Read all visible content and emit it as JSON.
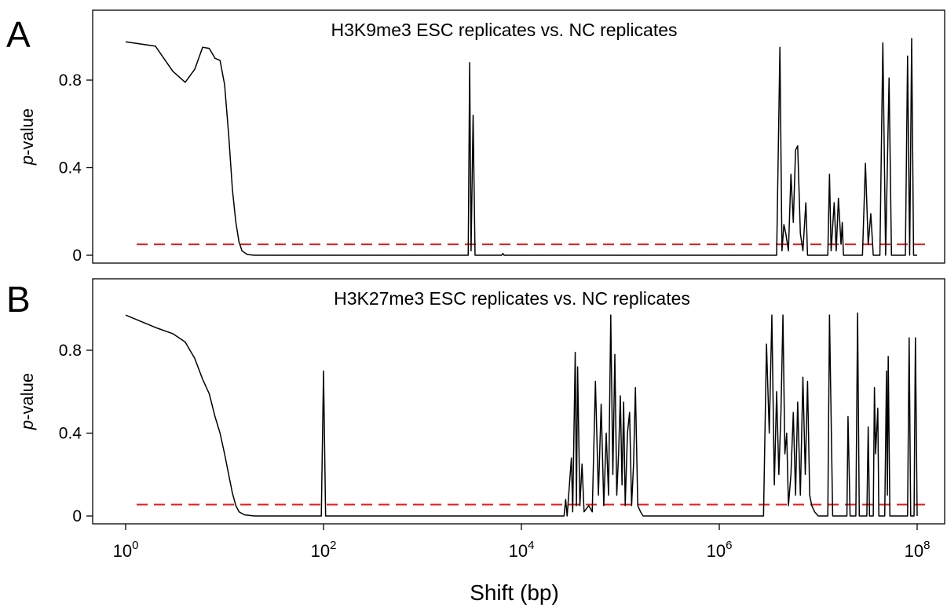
{
  "figure": {
    "xlabel": "Shift (bp)",
    "colors": {
      "curve": "#000000",
      "threshold": "#e41a1c"
    }
  },
  "chart_data": [
    {
      "type": "line",
      "panel_letter": "A",
      "title": "H3K9me3 ESC replicates vs. NC replicates",
      "xlabel": "",
      "ylabel_italic": "p",
      "ylabel_rest": "-value",
      "x_scale": "log10",
      "xlim": [
        0.8,
        160000000
      ],
      "ylim": [
        -0.03,
        1.05
      ],
      "yticks": [
        0,
        0.4,
        0.8
      ],
      "ytick_labels": [
        "0",
        "0.4",
        "0.8"
      ],
      "grid": false,
      "threshold": 0.05,
      "series": [
        {
          "values": [
            [
              1,
              0.975
            ],
            [
              2,
              0.955
            ],
            [
              3,
              0.84
            ],
            [
              4,
              0.79
            ],
            [
              5,
              0.85
            ],
            [
              6,
              0.95
            ],
            [
              7,
              0.945
            ],
            [
              8,
              0.9
            ],
            [
              9,
              0.89
            ],
            [
              10,
              0.78
            ],
            [
              11,
              0.55
            ],
            [
              12,
              0.3
            ],
            [
              13,
              0.15
            ],
            [
              14,
              0.06
            ],
            [
              15,
              0.02
            ],
            [
              17,
              0.003
            ],
            [
              20,
              0
            ],
            [
              2900,
              0
            ],
            [
              3000,
              0.88
            ],
            [
              3100,
              0.02
            ],
            [
              3250,
              0.64
            ],
            [
              3400,
              0
            ],
            [
              6300,
              0
            ],
            [
              6500,
              0.008
            ],
            [
              6700,
              0
            ],
            [
              3800000,
              0
            ],
            [
              4100000,
              0.95
            ],
            [
              4300000,
              0.02
            ],
            [
              4500000,
              0.14
            ],
            [
              4700000,
              0.1
            ],
            [
              5000000,
              0.02
            ],
            [
              5300000,
              0.37
            ],
            [
              5600000,
              0.15
            ],
            [
              5900000,
              0.48
            ],
            [
              6200000,
              0.5
            ],
            [
              6600000,
              0.1
            ],
            [
              7000000,
              0.02
            ],
            [
              7500000,
              0.24
            ],
            [
              7800000,
              0
            ],
            [
              12500000,
              0
            ],
            [
              13000000,
              0.37
            ],
            [
              13500000,
              0.02
            ],
            [
              14500000,
              0.24
            ],
            [
              15200000,
              0.02
            ],
            [
              16000000,
              0.26
            ],
            [
              17000000,
              0.05
            ],
            [
              17500000,
              0.15
            ],
            [
              18000000,
              0
            ],
            [
              28000000,
              0
            ],
            [
              30000000,
              0.42
            ],
            [
              32000000,
              0.05
            ],
            [
              34000000,
              0.19
            ],
            [
              36000000,
              0
            ],
            [
              42000000,
              0
            ],
            [
              45000000,
              0.97
            ],
            [
              48000000,
              0
            ],
            [
              52000000,
              0.81
            ],
            [
              55000000,
              0
            ],
            [
              76000000,
              0
            ],
            [
              80000000,
              0.91
            ],
            [
              84000000,
              0
            ],
            [
              88000000,
              0.99
            ],
            [
              92000000,
              0
            ],
            [
              100000000,
              0
            ]
          ]
        }
      ]
    },
    {
      "type": "line",
      "panel_letter": "B",
      "title": "H3K27me3 ESC replicates vs. NC replicates",
      "xlabel": "",
      "ylabel_italic": "p",
      "ylabel_rest": "-value",
      "x_scale": "log10",
      "xlim": [
        0.8,
        160000000
      ],
      "xticks": [
        1,
        100,
        10000,
        1000000,
        100000000
      ],
      "xtick_base": "10",
      "xtick_exponents": [
        "0",
        "2",
        "4",
        "6",
        "8"
      ],
      "ylim": [
        -0.03,
        1.05
      ],
      "yticks": [
        0,
        0.4,
        0.8
      ],
      "ytick_labels": [
        "0",
        "0.4",
        "0.8"
      ],
      "grid": false,
      "threshold": 0.055,
      "series": [
        {
          "values": [
            [
              1,
              0.97
            ],
            [
              2,
              0.91
            ],
            [
              3,
              0.88
            ],
            [
              4,
              0.84
            ],
            [
              5,
              0.76
            ],
            [
              6,
              0.66
            ],
            [
              7,
              0.59
            ],
            [
              8,
              0.48
            ],
            [
              9,
              0.4
            ],
            [
              10,
              0.3
            ],
            [
              11,
              0.2
            ],
            [
              12,
              0.11
            ],
            [
              13,
              0.05
            ],
            [
              14,
              0.02
            ],
            [
              16,
              0.005
            ],
            [
              20,
              0
            ],
            [
              95,
              0
            ],
            [
              100,
              0.7
            ],
            [
              105,
              0
            ],
            [
              27000,
              0
            ],
            [
              28000,
              0.08
            ],
            [
              29000,
              0
            ],
            [
              32000,
              0.28
            ],
            [
              33000,
              0.02
            ],
            [
              35000,
              0.79
            ],
            [
              36000,
              0.05
            ],
            [
              37000,
              0.72
            ],
            [
              39000,
              0.05
            ],
            [
              41000,
              0.25
            ],
            [
              43000,
              0.02
            ],
            [
              48000,
              0.05
            ],
            [
              52000,
              0.02
            ],
            [
              56000,
              0.65
            ],
            [
              60000,
              0.1
            ],
            [
              64000,
              0.54
            ],
            [
              68000,
              0.05
            ],
            [
              72000,
              0.4
            ],
            [
              76000,
              0.1
            ],
            [
              80000,
              0.97
            ],
            [
              84000,
              0.2
            ],
            [
              88000,
              0.78
            ],
            [
              92000,
              0.1
            ],
            [
              96000,
              0.3
            ],
            [
              100000,
              0.58
            ],
            [
              104000,
              0.15
            ],
            [
              108000,
              0.55
            ],
            [
              112000,
              0.05
            ],
            [
              118000,
              0.4
            ],
            [
              124000,
              0.5
            ],
            [
              130000,
              0.05
            ],
            [
              136000,
              0.25
            ],
            [
              142000,
              0.62
            ],
            [
              150000,
              0.05
            ],
            [
              160000,
              0.02
            ],
            [
              170000,
              0
            ],
            [
              2800000,
              0
            ],
            [
              3000000,
              0.83
            ],
            [
              3200000,
              0.4
            ],
            [
              3400000,
              0.97
            ],
            [
              3600000,
              0.15
            ],
            [
              3800000,
              0.6
            ],
            [
              4000000,
              0.2
            ],
            [
              4200000,
              0.5
            ],
            [
              4400000,
              0.97
            ],
            [
              4600000,
              0.3
            ],
            [
              4800000,
              0.4
            ],
            [
              5000000,
              0.05
            ],
            [
              5300000,
              0.2
            ],
            [
              5600000,
              0.5
            ],
            [
              5900000,
              0.1
            ],
            [
              6200000,
              0.55
            ],
            [
              6600000,
              0.1
            ],
            [
              7000000,
              0.67
            ],
            [
              7400000,
              0.2
            ],
            [
              7800000,
              0.65
            ],
            [
              8200000,
              0.1
            ],
            [
              8600000,
              0.05
            ],
            [
              9200000,
              0.02
            ],
            [
              10000000,
              0
            ],
            [
              12500000,
              0
            ],
            [
              13000000,
              0.97
            ],
            [
              14000000,
              0
            ],
            [
              19500000,
              0
            ],
            [
              20000000,
              0.48
            ],
            [
              21000000,
              0
            ],
            [
              24000000,
              0
            ],
            [
              25000000,
              0.98
            ],
            [
              26000000,
              0
            ],
            [
              31000000,
              0
            ],
            [
              32000000,
              0.43
            ],
            [
              33000000,
              0
            ],
            [
              36000000,
              0
            ],
            [
              37000000,
              0.62
            ],
            [
              38000000,
              0.3
            ],
            [
              40000000,
              0.52
            ],
            [
              41000000,
              0
            ],
            [
              47000000,
              0
            ],
            [
              49000000,
              0.7
            ],
            [
              50000000,
              0.1
            ],
            [
              51000000,
              0.77
            ],
            [
              53000000,
              0
            ],
            [
              80000000,
              0
            ],
            [
              83000000,
              0.86
            ],
            [
              86000000,
              0
            ],
            [
              93000000,
              0
            ],
            [
              96000000,
              0.86
            ],
            [
              100000000,
              0
            ]
          ]
        }
      ]
    }
  ]
}
